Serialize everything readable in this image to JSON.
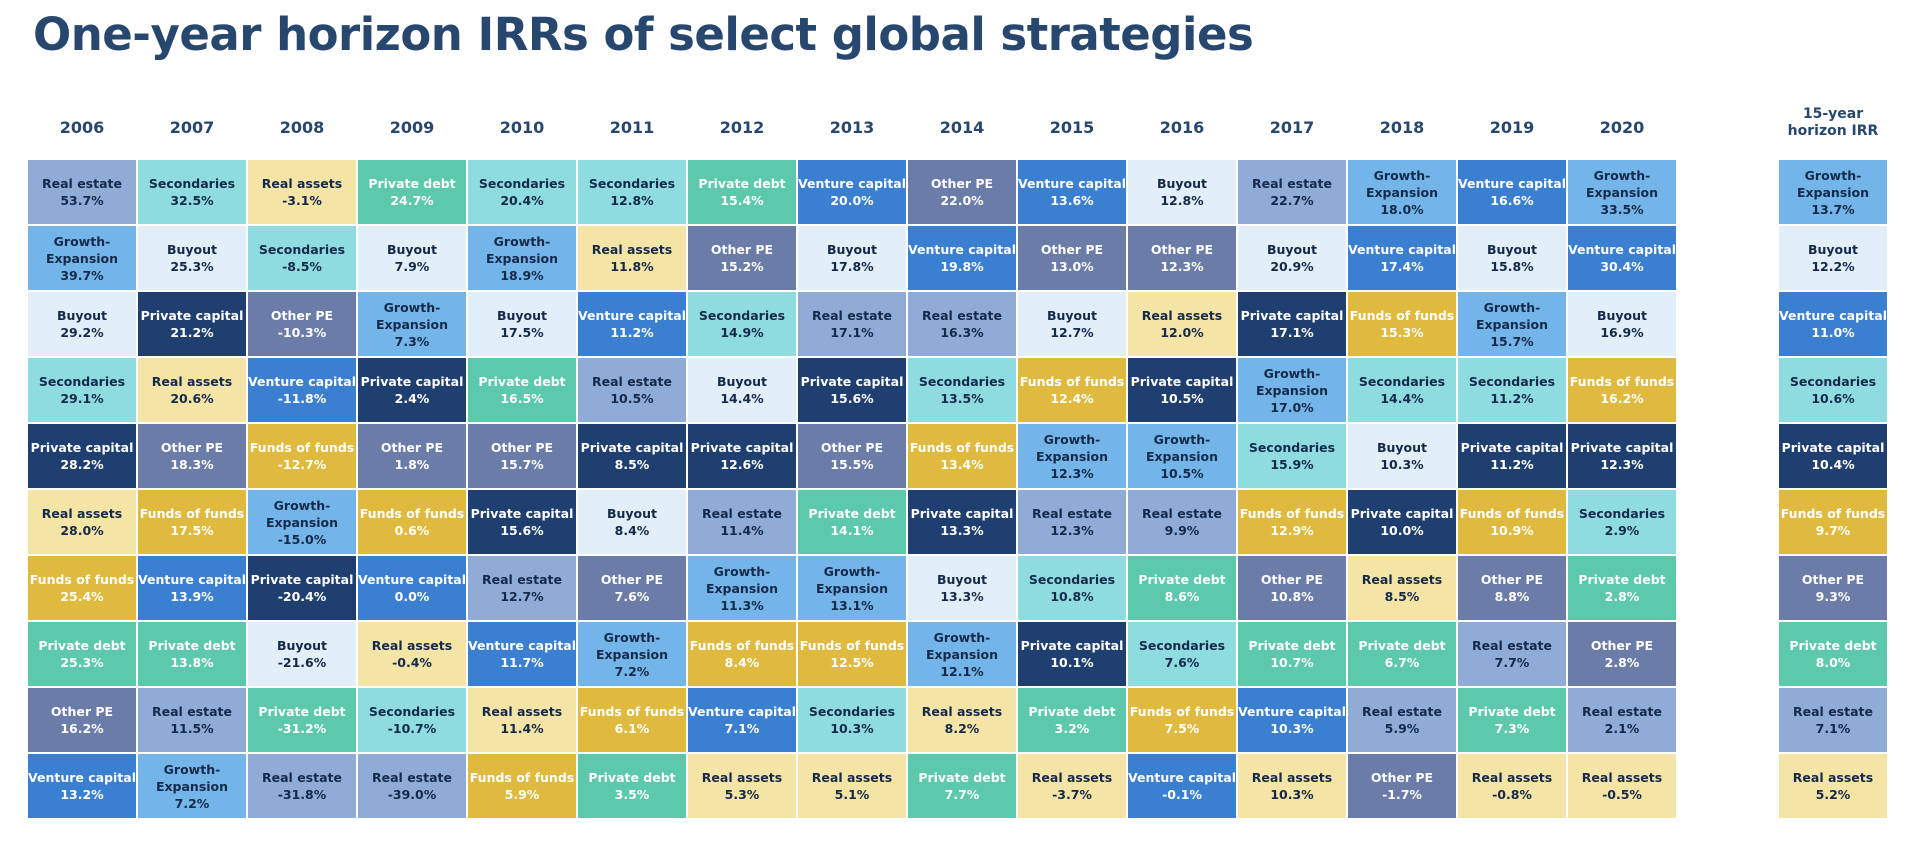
{
  "title": "One-year horizon IRRs of select global strategies",
  "chart_data": {
    "type": "table",
    "title": "One-year horizon IRRs of select global strategies",
    "columns": [
      "2006",
      "2007",
      "2008",
      "2009",
      "2010",
      "2011",
      "2012",
      "2013",
      "2014",
      "2015",
      "2016",
      "2017",
      "2018",
      "2019",
      "2020",
      "15-year horizon IRR"
    ],
    "strategy_colors": {
      "Real estate": "#8eacd6",
      "Secondaries": "#8fdce0",
      "Real assets": "#f4e4a5",
      "Private debt": "#5cc9ac",
      "Venture capital": "#3b7fd0",
      "Other PE": "#6b7ca8",
      "Buyout": "#e2eff9",
      "Growth-Expansion": "#73b5e8",
      "Private capital": "#1f3f70",
      "Funds of funds": "#dfba3f"
    },
    "cells": [
      [
        [
          "Real estate",
          "53.7%"
        ],
        [
          "Secondaries",
          "32.5%"
        ],
        [
          "Real assets",
          "-3.1%"
        ],
        [
          "Private debt",
          "24.7%"
        ],
        [
          "Secondaries",
          "20.4%"
        ],
        [
          "Secondaries",
          "12.8%"
        ],
        [
          "Private debt",
          "15.4%"
        ],
        [
          "Venture capital",
          "20.0%"
        ],
        [
          "Other PE",
          "22.0%"
        ],
        [
          "Venture capital",
          "13.6%"
        ],
        [
          "Buyout",
          "12.8%"
        ],
        [
          "Real estate",
          "22.7%"
        ],
        [
          "Growth-Expansion",
          "18.0%"
        ],
        [
          "Venture capital",
          "16.6%"
        ],
        [
          "Growth-Expansion",
          "33.5%"
        ],
        [
          "Growth-Expansion",
          "13.7%"
        ]
      ],
      [
        [
          "Growth-Expansion",
          "39.7%"
        ],
        [
          "Buyout",
          "25.3%"
        ],
        [
          "Secondaries",
          "-8.5%"
        ],
        [
          "Buyout",
          "7.9%"
        ],
        [
          "Growth-Expansion",
          "18.9%"
        ],
        [
          "Real assets",
          "11.8%"
        ],
        [
          "Other PE",
          "15.2%"
        ],
        [
          "Buyout",
          "17.8%"
        ],
        [
          "Venture capital",
          "19.8%"
        ],
        [
          "Other PE",
          "13.0%"
        ],
        [
          "Other PE",
          "12.3%"
        ],
        [
          "Buyout",
          "20.9%"
        ],
        [
          "Venture capital",
          "17.4%"
        ],
        [
          "Buyout",
          "15.8%"
        ],
        [
          "Venture capital",
          "30.4%"
        ],
        [
          "Buyout",
          "12.2%"
        ]
      ],
      [
        [
          "Buyout",
          "29.2%"
        ],
        [
          "Private capital",
          "21.2%"
        ],
        [
          "Other PE",
          "-10.3%"
        ],
        [
          "Growth-Expansion",
          "7.3%"
        ],
        [
          "Buyout",
          "17.5%"
        ],
        [
          "Venture capital",
          "11.2%"
        ],
        [
          "Secondaries",
          "14.9%"
        ],
        [
          "Real estate",
          "17.1%"
        ],
        [
          "Real estate",
          "16.3%"
        ],
        [
          "Buyout",
          "12.7%"
        ],
        [
          "Real assets",
          "12.0%"
        ],
        [
          "Private capital",
          "17.1%"
        ],
        [
          "Funds of funds",
          "15.3%"
        ],
        [
          "Growth-Expansion",
          "15.7%"
        ],
        [
          "Buyout",
          "16.9%"
        ],
        [
          "Venture capital",
          "11.0%"
        ]
      ],
      [
        [
          "Secondaries",
          "29.1%"
        ],
        [
          "Real assets",
          "20.6%"
        ],
        [
          "Venture capital",
          "-11.8%"
        ],
        [
          "Private capital",
          "2.4%"
        ],
        [
          "Private debt",
          "16.5%"
        ],
        [
          "Real estate",
          "10.5%"
        ],
        [
          "Buyout",
          "14.4%"
        ],
        [
          "Private capital",
          "15.6%"
        ],
        [
          "Secondaries",
          "13.5%"
        ],
        [
          "Funds of funds",
          "12.4%"
        ],
        [
          "Private capital",
          "10.5%"
        ],
        [
          "Growth-Expansion",
          "17.0%"
        ],
        [
          "Secondaries",
          "14.4%"
        ],
        [
          "Secondaries",
          "11.2%"
        ],
        [
          "Funds of funds",
          "16.2%"
        ],
        [
          "Secondaries",
          "10.6%"
        ]
      ],
      [
        [
          "Private capital",
          "28.2%"
        ],
        [
          "Other PE",
          "18.3%"
        ],
        [
          "Funds of funds",
          "-12.7%"
        ],
        [
          "Other PE",
          "1.8%"
        ],
        [
          "Other PE",
          "15.7%"
        ],
        [
          "Private capital",
          "8.5%"
        ],
        [
          "Private capital",
          "12.6%"
        ],
        [
          "Other PE",
          "15.5%"
        ],
        [
          "Funds of funds",
          "13.4%"
        ],
        [
          "Growth-Expansion",
          "12.3%"
        ],
        [
          "Growth-Expansion",
          "10.5%"
        ],
        [
          "Secondaries",
          "15.9%"
        ],
        [
          "Buyout",
          "10.3%"
        ],
        [
          "Private capital",
          "11.2%"
        ],
        [
          "Private capital",
          "12.3%"
        ],
        [
          "Private capital",
          "10.4%"
        ]
      ],
      [
        [
          "Real assets",
          "28.0%"
        ],
        [
          "Funds of funds",
          "17.5%"
        ],
        [
          "Growth-Expansion",
          "-15.0%"
        ],
        [
          "Funds of funds",
          "0.6%"
        ],
        [
          "Private capital",
          "15.6%"
        ],
        [
          "Buyout",
          "8.4%"
        ],
        [
          "Real estate",
          "11.4%"
        ],
        [
          "Private debt",
          "14.1%"
        ],
        [
          "Private capital",
          "13.3%"
        ],
        [
          "Real estate",
          "12.3%"
        ],
        [
          "Real estate",
          "9.9%"
        ],
        [
          "Funds of funds",
          "12.9%"
        ],
        [
          "Private capital",
          "10.0%"
        ],
        [
          "Funds of funds",
          "10.9%"
        ],
        [
          "Secondaries",
          "2.9%"
        ],
        [
          "Funds of funds",
          "9.7%"
        ]
      ],
      [
        [
          "Funds of funds",
          "25.4%"
        ],
        [
          "Venture capital",
          "13.9%"
        ],
        [
          "Private capital",
          "-20.4%"
        ],
        [
          "Venture capital",
          "0.0%"
        ],
        [
          "Real estate",
          "12.7%"
        ],
        [
          "Other PE",
          "7.6%"
        ],
        [
          "Growth-Expansion",
          "11.3%"
        ],
        [
          "Growth-Expansion",
          "13.1%"
        ],
        [
          "Buyout",
          "13.3%"
        ],
        [
          "Secondaries",
          "10.8%"
        ],
        [
          "Private debt",
          "8.6%"
        ],
        [
          "Other PE",
          "10.8%"
        ],
        [
          "Real assets",
          "8.5%"
        ],
        [
          "Other PE",
          "8.8%"
        ],
        [
          "Private debt",
          "2.8%"
        ],
        [
          "Other PE",
          "9.3%"
        ]
      ],
      [
        [
          "Private debt",
          "25.3%"
        ],
        [
          "Private debt",
          "13.8%"
        ],
        [
          "Buyout",
          "-21.6%"
        ],
        [
          "Real assets",
          "-0.4%"
        ],
        [
          "Venture capital",
          "11.7%"
        ],
        [
          "Growth-Expansion",
          "7.2%"
        ],
        [
          "Funds of funds",
          "8.4%"
        ],
        [
          "Funds of funds",
          "12.5%"
        ],
        [
          "Growth-Expansion",
          "12.1%"
        ],
        [
          "Private capital",
          "10.1%"
        ],
        [
          "Secondaries",
          "7.6%"
        ],
        [
          "Private debt",
          "10.7%"
        ],
        [
          "Private debt",
          "6.7%"
        ],
        [
          "Real estate",
          "7.7%"
        ],
        [
          "Other PE",
          "2.8%"
        ],
        [
          "Private debt",
          "8.0%"
        ]
      ],
      [
        [
          "Other PE",
          "16.2%"
        ],
        [
          "Real estate",
          "11.5%"
        ],
        [
          "Private debt",
          "-31.2%"
        ],
        [
          "Secondaries",
          "-10.7%"
        ],
        [
          "Real assets",
          "11.4%"
        ],
        [
          "Funds of funds",
          "6.1%"
        ],
        [
          "Venture capital",
          "7.1%"
        ],
        [
          "Secondaries",
          "10.3%"
        ],
        [
          "Real assets",
          "8.2%"
        ],
        [
          "Private debt",
          "3.2%"
        ],
        [
          "Funds of funds",
          "7.5%"
        ],
        [
          "Venture capital",
          "10.3%"
        ],
        [
          "Real estate",
          "5.9%"
        ],
        [
          "Private debt",
          "7.3%"
        ],
        [
          "Real estate",
          "2.1%"
        ],
        [
          "Real estate",
          "7.1%"
        ]
      ],
      [
        [
          "Venture capital",
          "13.2%"
        ],
        [
          "Growth-Expansion",
          "7.2%"
        ],
        [
          "Real estate",
          "-31.8%"
        ],
        [
          "Real estate",
          "-39.0%"
        ],
        [
          "Funds of funds",
          "5.9%"
        ],
        [
          "Private debt",
          "3.5%"
        ],
        [
          "Real assets",
          "5.3%"
        ],
        [
          "Real assets",
          "5.1%"
        ],
        [
          "Private debt",
          "7.7%"
        ],
        [
          "Real assets",
          "-3.7%"
        ],
        [
          "Venture capital",
          "-0.1%"
        ],
        [
          "Real assets",
          "10.3%"
        ],
        [
          "Other PE",
          "-1.7%"
        ],
        [
          "Real assets",
          "-0.8%"
        ],
        [
          "Real assets",
          "-0.5%"
        ],
        [
          "Real assets",
          "5.2%"
        ]
      ]
    ]
  }
}
